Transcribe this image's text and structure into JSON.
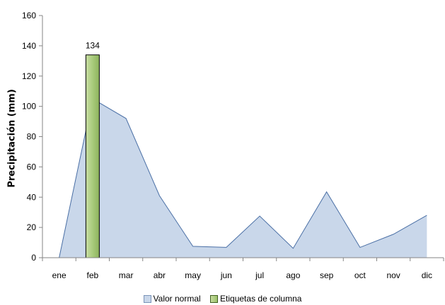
{
  "chart_data": {
    "type": "bar",
    "categories": [
      "ene",
      "feb",
      "mar",
      "abr",
      "may",
      "jun",
      "jul",
      "ago",
      "sep",
      "oct",
      "nov",
      "dic"
    ],
    "series": [
      {
        "name": "Valor normal",
        "type": "area",
        "values": [
          0,
          105,
          92,
          41,
          7.5,
          6.8,
          27.5,
          6.2,
          43.5,
          6.8,
          15.5,
          28
        ]
      },
      {
        "name": "Etiquetas de columna",
        "type": "bar",
        "values": [
          null,
          134,
          null,
          null,
          null,
          null,
          null,
          null,
          null,
          null,
          null,
          null
        ],
        "data_labels": [
          "",
          "134",
          "",
          "",
          "",
          "",
          "",
          "",
          "",
          "",
          "",
          ""
        ]
      }
    ],
    "ylabel": "Precipitación (mm)",
    "xlabel": "",
    "ylim": [
      0,
      160
    ],
    "yticks": [
      0,
      20,
      40,
      60,
      80,
      100,
      120,
      140,
      160
    ],
    "grid": false,
    "legend_position": "bottom",
    "colors": {
      "area_fill": "#c9d7ea",
      "area_line": "#4a6fa5",
      "bar_fill": "#a9cb7c",
      "bar_border": "#000000"
    }
  }
}
